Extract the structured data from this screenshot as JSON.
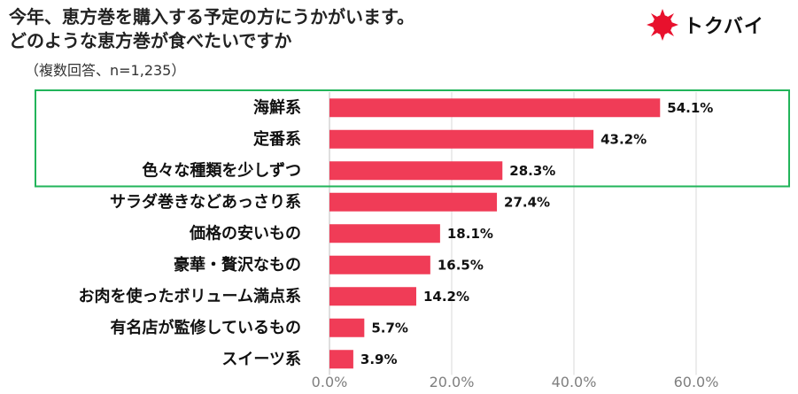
{
  "header": {
    "title_line1": "今年、恵方巻を購入する予定の方にうかがいます。",
    "title_line2": "どのような恵方巻が食べたいですか",
    "subtitle": "（複数回答、n=1,235）"
  },
  "logo": {
    "text": "トクバイ",
    "icon": "sun-icon",
    "color": "#e8112d"
  },
  "colors": {
    "bar": "#f03c57",
    "highlight_box": "#22b45a",
    "grid": "#d9d9d9",
    "text": "#111111",
    "axis_text": "#7f7f7f"
  },
  "chart_data": {
    "type": "bar",
    "orientation": "horizontal",
    "title": "どのような恵方巻が食べたいですか",
    "categories": [
      "海鮮系",
      "定番系",
      "色々な種類を少しずつ",
      "サラダ巻きなどあっさり系",
      "価格の安いもの",
      "豪華・贅沢なもの",
      "お肉を使ったボリューム満点系",
      "有名店が監修しているもの",
      "スイーツ系"
    ],
    "values": [
      54.1,
      43.2,
      28.3,
      27.4,
      18.1,
      16.5,
      14.2,
      5.7,
      3.9
    ],
    "value_labels": [
      "54.1%",
      "43.2%",
      "28.3%",
      "27.4%",
      "18.1%",
      "16.5%",
      "14.2%",
      "5.7%",
      "3.9%"
    ],
    "xlim": [
      0,
      60
    ],
    "xticks": [
      "0.0%",
      "20.0%",
      "40.0%",
      "60.0%"
    ],
    "xtick_values": [
      0,
      20,
      40,
      60
    ],
    "highlighted_categories": [
      "海鮮系",
      "定番系",
      "色々な種類を少しずつ"
    ],
    "grid": true
  }
}
